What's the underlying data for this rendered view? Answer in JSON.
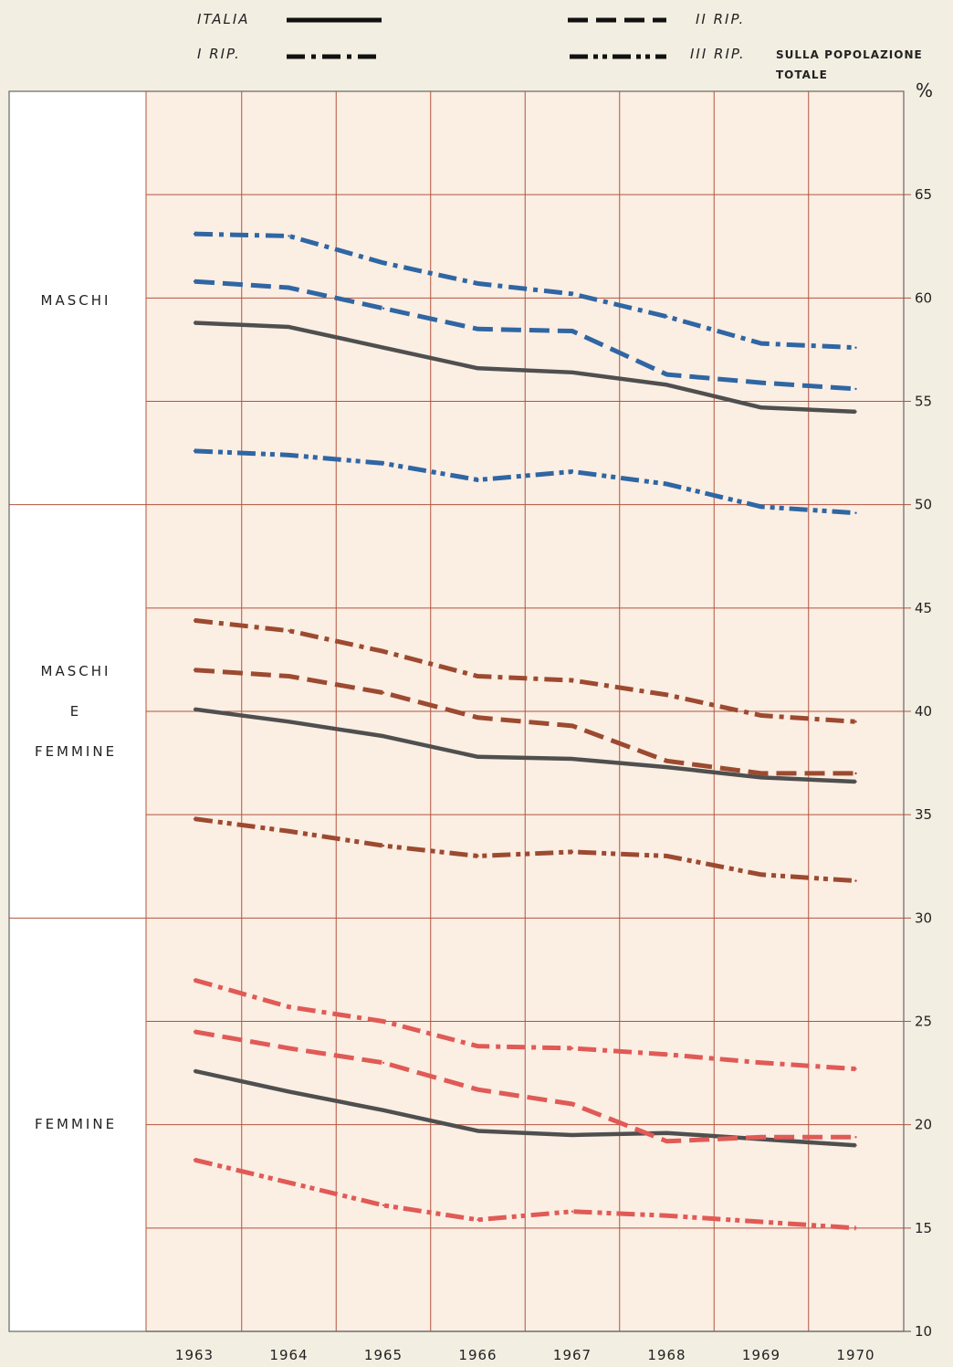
{
  "legend": [
    {
      "label": "ITALIA",
      "style": "solid"
    },
    {
      "label": "II RIP.",
      "style": "dashed"
    },
    {
      "label": "I RIP.",
      "style": "dashdot"
    },
    {
      "label": "III RIP.",
      "style": "dashdotdot"
    }
  ],
  "note_line1": "SULLA POPOLAZIONE",
  "note_line2": "TOTALE",
  "unit": "%",
  "groups": [
    {
      "lines": [
        "MASCHI"
      ],
      "color": "#2f66a3"
    },
    {
      "lines": [
        "MASCHI",
        "E",
        "FEMMINE"
      ],
      "color": "#9c4a30"
    },
    {
      "lines": [
        "FEMMINE"
      ],
      "color": "#e05a56"
    }
  ],
  "colors": {
    "grid": "#b2543f",
    "italia": "#4f4f4f",
    "frame": "#666666"
  },
  "chart_data": {
    "type": "line",
    "x": [
      "1963",
      "1964",
      "1965",
      "1966",
      "1967",
      "1968",
      "1969",
      "1970"
    ],
    "ylim": [
      10,
      70
    ],
    "yticks": [
      "65",
      "60",
      "55",
      "50",
      "45",
      "40",
      "35",
      "30",
      "25",
      "20",
      "15",
      "10"
    ],
    "series": [
      {
        "group": "MASCHI",
        "name": "ITALIA",
        "values": [
          58.8,
          58.6,
          57.6,
          56.6,
          56.4,
          55.8,
          54.7,
          54.5
        ]
      },
      {
        "group": "MASCHI",
        "name": "I RIP.",
        "values": [
          63.1,
          63.0,
          61.7,
          60.7,
          60.2,
          59.1,
          57.8,
          57.6
        ]
      },
      {
        "group": "MASCHI",
        "name": "II RIP.",
        "values": [
          60.8,
          60.5,
          59.5,
          58.5,
          58.4,
          56.3,
          55.9,
          55.6
        ]
      },
      {
        "group": "MASCHI",
        "name": "III RIP.",
        "values": [
          52.6,
          52.4,
          52.0,
          51.2,
          51.6,
          51.0,
          49.9,
          49.6
        ]
      },
      {
        "group": "MASCHI E FEMMINE",
        "name": "ITALIA",
        "values": [
          40.1,
          39.5,
          38.8,
          37.8,
          37.7,
          37.3,
          36.8,
          36.6
        ]
      },
      {
        "group": "MASCHI E FEMMINE",
        "name": "I RIP.",
        "values": [
          44.4,
          43.9,
          42.9,
          41.7,
          41.5,
          40.8,
          39.8,
          39.5
        ]
      },
      {
        "group": "MASCHI E FEMMINE",
        "name": "II RIP.",
        "values": [
          42.0,
          41.7,
          40.9,
          39.7,
          39.3,
          37.6,
          37.0,
          37.0
        ]
      },
      {
        "group": "MASCHI E FEMMINE",
        "name": "III RIP.",
        "values": [
          34.8,
          34.2,
          33.5,
          33.0,
          33.2,
          33.0,
          32.1,
          31.8
        ]
      },
      {
        "group": "FEMMINE",
        "name": "ITALIA",
        "values": [
          22.6,
          21.6,
          20.7,
          19.7,
          19.5,
          19.6,
          19.3,
          19.0
        ]
      },
      {
        "group": "FEMMINE",
        "name": "I RIP.",
        "values": [
          27.0,
          25.7,
          25.0,
          23.8,
          23.7,
          23.4,
          23.0,
          22.7
        ]
      },
      {
        "group": "FEMMINE",
        "name": "II RIP.",
        "values": [
          24.5,
          23.7,
          23.0,
          21.7,
          21.0,
          19.2,
          19.4,
          19.4
        ]
      },
      {
        "group": "FEMMINE",
        "name": "III RIP.",
        "values": [
          18.3,
          17.2,
          16.1,
          15.4,
          15.8,
          15.6,
          15.3,
          15.0
        ]
      }
    ]
  }
}
